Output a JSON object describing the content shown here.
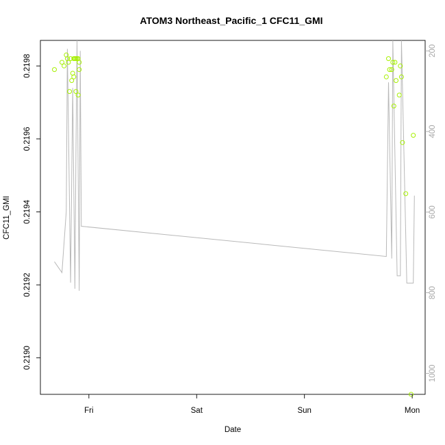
{
  "chart_data": {
    "type": "scatter",
    "title": "ATOM3 Northeast_Pacific_1 CFC11_GMI",
    "xlabel": "Date",
    "ylabel": "CFC11_GMI",
    "x_ticks": [
      {
        "label": "Fri",
        "day": 1.0
      },
      {
        "label": "Sat",
        "day": 2.0
      },
      {
        "label": "Sun",
        "day": 3.0
      },
      {
        "label": "Mon",
        "day": 4.0
      }
    ],
    "xlim_days": [
      0.55,
      4.12
    ],
    "ylim": [
      0.2189,
      0.21987
    ],
    "y_ticks": [
      0.219,
      0.2192,
      0.2194,
      0.2196,
      0.2198
    ],
    "y_tick_labels": [
      "0.2190",
      "0.2192",
      "0.2194",
      "0.2196",
      "0.2198"
    ],
    "right_axis": {
      "label": "",
      "ticks": [
        200,
        400,
        600,
        800,
        1000
      ],
      "range_top_to_bottom": [
        174,
        1052
      ],
      "color": "#a9a9a9"
    },
    "series": [
      {
        "kind": "points",
        "color": "#a6f000",
        "points": [
          [
            0.68,
            0.21979
          ],
          [
            0.75,
            0.21981
          ],
          [
            0.77,
            0.2198
          ],
          [
            0.79,
            0.21983
          ],
          [
            0.8,
            0.21982
          ],
          [
            0.81,
            0.21981
          ],
          [
            0.82,
            0.21973
          ],
          [
            0.83,
            0.21982
          ],
          [
            0.84,
            0.21976
          ],
          [
            0.85,
            0.21978
          ],
          [
            0.86,
            0.21977
          ],
          [
            0.86,
            0.21982
          ],
          [
            0.87,
            0.21982
          ],
          [
            0.88,
            0.21982
          ],
          [
            0.88,
            0.21973
          ],
          [
            0.89,
            0.21982
          ],
          [
            0.9,
            0.21972
          ],
          [
            0.9,
            0.21982
          ],
          [
            0.91,
            0.21981
          ],
          [
            0.91,
            0.21979
          ],
          [
            3.76,
            0.21977
          ],
          [
            3.78,
            0.21982
          ],
          [
            3.79,
            0.21979
          ],
          [
            3.81,
            0.21979
          ],
          [
            3.82,
            0.21981
          ],
          [
            3.83,
            0.21969
          ],
          [
            3.84,
            0.21981
          ],
          [
            3.85,
            0.21976
          ],
          [
            3.88,
            0.21972
          ],
          [
            3.89,
            0.2198
          ],
          [
            3.9,
            0.21977
          ],
          [
            3.91,
            0.21959
          ],
          [
            3.94,
            0.21945
          ],
          [
            3.99,
            0.2189
          ],
          [
            4.01,
            0.21961
          ]
        ]
      },
      {
        "kind": "line",
        "axis": "right",
        "color": "#b8b8b8",
        "points": [
          [
            0.68,
            723
          ],
          [
            0.75,
            750
          ],
          [
            0.79,
            598
          ],
          [
            0.8,
            195
          ],
          [
            0.83,
            775
          ],
          [
            0.85,
            292
          ],
          [
            0.87,
            790
          ],
          [
            0.88,
            460
          ],
          [
            0.89,
            130
          ],
          [
            0.91,
            795
          ],
          [
            0.92,
            200
          ],
          [
            0.93,
            635
          ],
          [
            3.76,
            710
          ],
          [
            3.78,
            278
          ],
          [
            3.81,
            715
          ],
          [
            3.82,
            130
          ],
          [
            3.86,
            758
          ],
          [
            3.89,
            758
          ],
          [
            3.9,
            130
          ],
          [
            3.95,
            776
          ],
          [
            4.01,
            776
          ],
          [
            4.02,
            559
          ]
        ]
      }
    ],
    "grid": false,
    "legend": "none"
  }
}
